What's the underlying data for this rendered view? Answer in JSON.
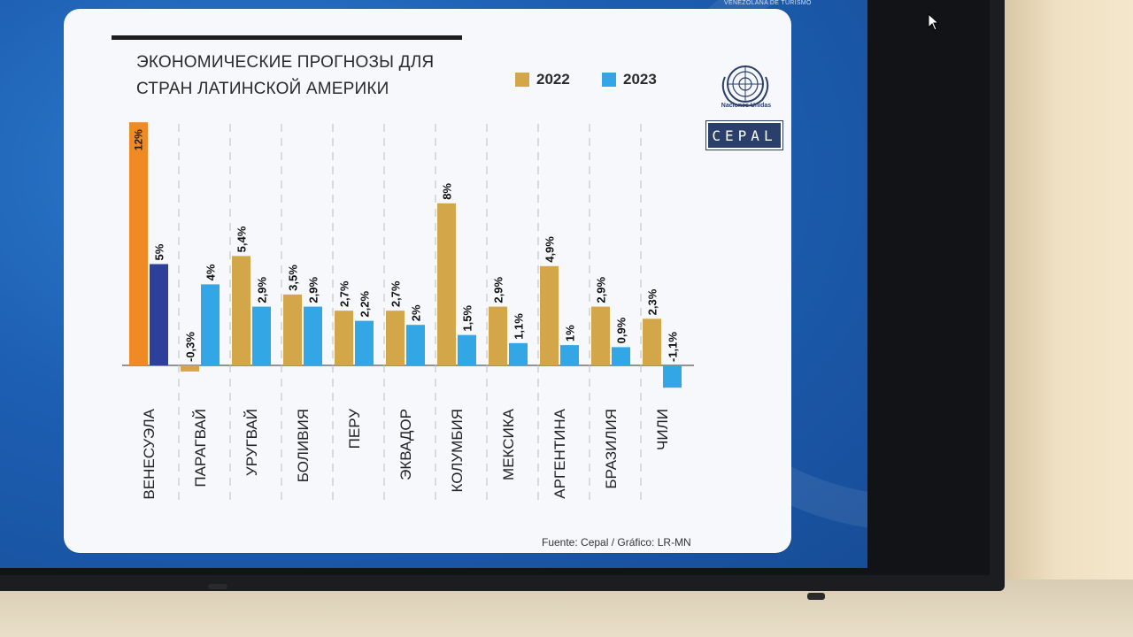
{
  "slide": {
    "tourism_text": "VENEZOLANA DE TURISMO",
    "title_line1": "ЭКОНОМИЧЕСКИЕ ПРОГНОЗЫ ДЛЯ",
    "title_line2": "СТРАН ЛАТИНСКОЙ АМЕРИКИ",
    "un_caption": "Naciones Unidas",
    "cepal": "CEPAL",
    "source": "Fuente: Cepal  / Gráfico: LR-MN"
  },
  "colors": {
    "y2022": "#d3a64a",
    "y2023": "#33a6e6",
    "venezuela2022": "#f08a24",
    "venezuela2023": "#2c3f9a"
  },
  "chart_data": {
    "type": "bar",
    "title": "ЭКОНОМИЧЕСКИЕ ПРОГНОЗЫ ДЛЯ СТРАН ЛАТИНСКОЙ АМЕРИКИ",
    "categories": [
      "ВЕНЕСУЭЛА",
      "ПАРАГВАЙ",
      "УРУГВАЙ",
      "БОЛИВИЯ",
      "ПЕРУ",
      "ЭКВАДОР",
      "КОЛУМБИЯ",
      "МЕКСИКА",
      "АРГЕНТИНА",
      "БРАЗИЛИЯ",
      "ЧИЛИ"
    ],
    "series": [
      {
        "name": "2022",
        "values": [
          12,
          -0.3,
          5.4,
          3.5,
          2.7,
          2.7,
          8,
          2.9,
          4.9,
          2.9,
          2.3
        ],
        "labels": [
          "12%",
          "-0,3%",
          "5,4%",
          "3,5%",
          "2,7%",
          "2,7%",
          "8%",
          "2,9%",
          "4,9%",
          "2,9%",
          "2,3%"
        ]
      },
      {
        "name": "2023",
        "values": [
          5,
          4,
          2.9,
          2.9,
          2.2,
          2,
          1.5,
          1.1,
          1,
          0.9,
          -1.1
        ],
        "labels": [
          "5%",
          "4%",
          "2,9%",
          "2,9%",
          "2,2%",
          "2%",
          "1,5%",
          "1,1%",
          "1%",
          "0,9%",
          "-1,1%"
        ]
      }
    ],
    "legend": "top",
    "grid": false
  }
}
